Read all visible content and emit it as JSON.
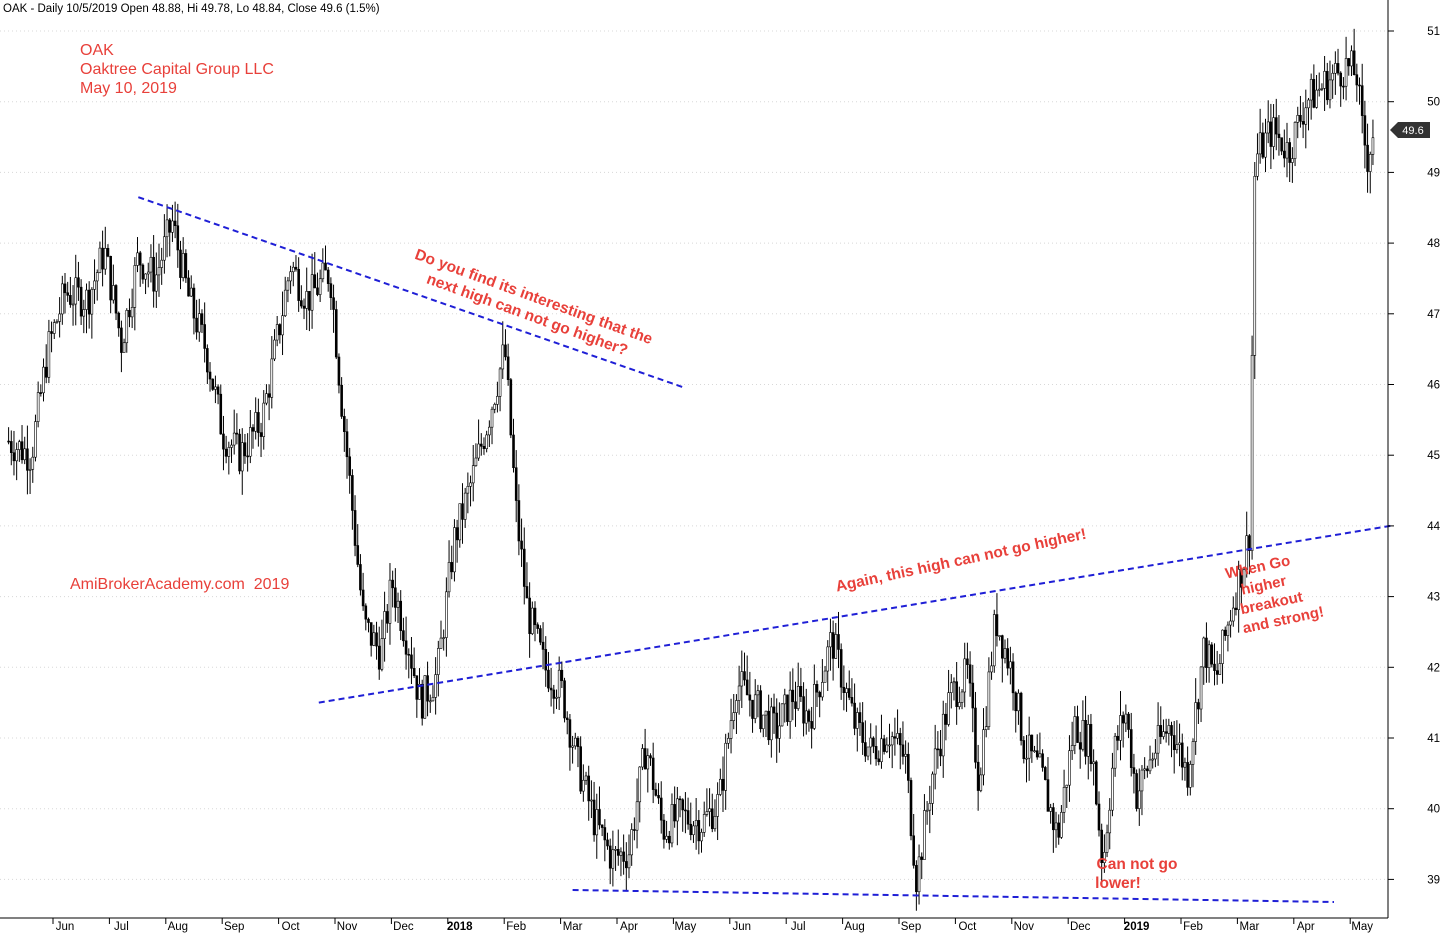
{
  "header": {
    "quote": "OAK - Daily 10/5/2019 Open 48.88, Hi 49.78, Lo 48.84, Close 49.6 (1.5%)"
  },
  "info": {
    "symbol": "OAK",
    "company": "Oaktree Capital Group LLC",
    "date": "May 10, 2019",
    "watermark": "AmiBrokerAcademy.com  2019"
  },
  "annotations": {
    "top_note_line1": "Do you find its interesting that the",
    "top_note_line2": "next high can not go higher?",
    "mid_note": "Again, this high can not go higher!",
    "low_note_line1": "Can not go",
    "low_note_line2": "lower!",
    "right_note_line1": "When Go",
    "right_note_line2": "higher",
    "right_note_line3": "breakout",
    "right_note_line4": "and strong!"
  },
  "colors": {
    "annotation": "#e8403a",
    "trendline": "#1f1fd6",
    "candle": "#000000",
    "grid": "#d8d8d8",
    "price_box": "#333333"
  },
  "chart_data": {
    "type": "candlestick",
    "ylim": [
      38.4,
      51.4
    ],
    "yticks": [
      39,
      40,
      41,
      42,
      43,
      44,
      45,
      46,
      47,
      48,
      49,
      50,
      51
    ],
    "xticks": [
      {
        "label": "Jun",
        "t": 0.0
      },
      {
        "label": "Jul",
        "t": 1.0
      },
      {
        "label": "Aug",
        "t": 2.0
      },
      {
        "label": "Sep",
        "t": 3.0
      },
      {
        "label": "Oct",
        "t": 4.0
      },
      {
        "label": "Nov",
        "t": 5.0
      },
      {
        "label": "Dec",
        "t": 6.0
      },
      {
        "label": "2018",
        "t": 7.0,
        "bold": true
      },
      {
        "label": "Feb",
        "t": 8.0
      },
      {
        "label": "Mar",
        "t": 9.0
      },
      {
        "label": "Apr",
        "t": 10.0
      },
      {
        "label": "May",
        "t": 11.0
      },
      {
        "label": "Jun",
        "t": 12.0
      },
      {
        "label": "Jul",
        "t": 13.0
      },
      {
        "label": "Aug",
        "t": 14.0
      },
      {
        "label": "Sep",
        "t": 15.0
      },
      {
        "label": "Oct",
        "t": 16.0
      },
      {
        "label": "Nov",
        "t": 17.0
      },
      {
        "label": "Dec",
        "t": 18.0
      },
      {
        "label": "2019",
        "t": 19.0,
        "bold": true
      },
      {
        "label": "Feb",
        "t": 20.0
      },
      {
        "label": "Mar",
        "t": 21.0
      },
      {
        "label": "Apr",
        "t": 22.0
      },
      {
        "label": "May",
        "t": 23.0
      }
    ],
    "last_price": "49.6",
    "last_price_value": 49.6,
    "trendlines": [
      {
        "name": "descending-resistance",
        "t1": 1.3,
        "v1": 48.65,
        "t2": 11.0,
        "v2": 45.95
      },
      {
        "name": "ascending-trendline",
        "t1": 4.5,
        "v1": 41.5,
        "t2": 23.5,
        "v2": 44.0
      },
      {
        "name": "flat-support",
        "t1": 9.0,
        "v1": 38.85,
        "t2": 22.5,
        "v2": 38.68
      }
    ],
    "price_path": [
      {
        "t": -1.0,
        "v": 45.2
      },
      {
        "t": -0.6,
        "v": 45.0
      },
      {
        "t": -0.3,
        "v": 46.5
      },
      {
        "t": 0.0,
        "v": 47.3
      },
      {
        "t": 0.4,
        "v": 47.2
      },
      {
        "t": 0.7,
        "v": 47.9
      },
      {
        "t": 1.0,
        "v": 46.6
      },
      {
        "t": 1.3,
        "v": 47.8
      },
      {
        "t": 1.6,
        "v": 47.5
      },
      {
        "t": 1.9,
        "v": 48.3
      },
      {
        "t": 2.2,
        "v": 47.2
      },
      {
        "t": 2.5,
        "v": 46.5
      },
      {
        "t": 2.8,
        "v": 45.3
      },
      {
        "t": 3.1,
        "v": 45.0
      },
      {
        "t": 3.5,
        "v": 45.5
      },
      {
        "t": 3.8,
        "v": 46.8
      },
      {
        "t": 4.0,
        "v": 47.7
      },
      {
        "t": 4.3,
        "v": 47.2
      },
      {
        "t": 4.7,
        "v": 47.6
      },
      {
        "t": 4.9,
        "v": 45.8
      },
      {
        "t": 5.1,
        "v": 44.2
      },
      {
        "t": 5.3,
        "v": 42.6
      },
      {
        "t": 5.6,
        "v": 42.2
      },
      {
        "t": 5.8,
        "v": 43.2
      },
      {
        "t": 6.1,
        "v": 42.3
      },
      {
        "t": 6.3,
        "v": 41.5
      },
      {
        "t": 6.6,
        "v": 41.9
      },
      {
        "t": 6.9,
        "v": 43.8
      },
      {
        "t": 7.2,
        "v": 44.6
      },
      {
        "t": 7.5,
        "v": 45.5
      },
      {
        "t": 7.8,
        "v": 46.5
      },
      {
        "t": 8.0,
        "v": 44.2
      },
      {
        "t": 8.2,
        "v": 42.8
      },
      {
        "t": 8.5,
        "v": 42.0
      },
      {
        "t": 8.8,
        "v": 41.7
      },
      {
        "t": 9.1,
        "v": 40.6
      },
      {
        "t": 9.4,
        "v": 39.8
      },
      {
        "t": 9.7,
        "v": 39.3
      },
      {
        "t": 10.0,
        "v": 39.4
      },
      {
        "t": 10.3,
        "v": 40.9
      },
      {
        "t": 10.6,
        "v": 39.7
      },
      {
        "t": 10.9,
        "v": 39.9
      },
      {
        "t": 11.3,
        "v": 39.8
      },
      {
        "t": 11.6,
        "v": 40.1
      },
      {
        "t": 11.9,
        "v": 41.8
      },
      {
        "t": 12.2,
        "v": 41.5
      },
      {
        "t": 12.6,
        "v": 41.1
      },
      {
        "t": 12.9,
        "v": 41.6
      },
      {
        "t": 13.2,
        "v": 41.3
      },
      {
        "t": 13.6,
        "v": 42.4
      },
      {
        "t": 14.0,
        "v": 41.2
      },
      {
        "t": 14.3,
        "v": 40.8
      },
      {
        "t": 14.6,
        "v": 41.1
      },
      {
        "t": 14.9,
        "v": 40.7
      },
      {
        "t": 15.1,
        "v": 39.0
      },
      {
        "t": 15.4,
        "v": 40.6
      },
      {
        "t": 15.7,
        "v": 41.6
      },
      {
        "t": 16.0,
        "v": 41.9
      },
      {
        "t": 16.2,
        "v": 40.4
      },
      {
        "t": 16.5,
        "v": 42.7
      },
      {
        "t": 16.8,
        "v": 41.9
      },
      {
        "t": 17.0,
        "v": 40.9
      },
      {
        "t": 17.3,
        "v": 40.5
      },
      {
        "t": 17.6,
        "v": 39.6
      },
      {
        "t": 17.9,
        "v": 41.2
      },
      {
        "t": 18.2,
        "v": 40.9
      },
      {
        "t": 18.4,
        "v": 39.2
      },
      {
        "t": 18.6,
        "v": 40.8
      },
      {
        "t": 18.8,
        "v": 41.4
      },
      {
        "t": 19.0,
        "v": 40.2
      },
      {
        "t": 19.3,
        "v": 40.8
      },
      {
        "t": 19.6,
        "v": 41.2
      },
      {
        "t": 19.9,
        "v": 40.5
      },
      {
        "t": 20.2,
        "v": 42.3
      },
      {
        "t": 20.4,
        "v": 41.8
      },
      {
        "t": 20.7,
        "v": 42.9
      },
      {
        "t": 20.9,
        "v": 43.5
      },
      {
        "t": 21.0,
        "v": 43.9
      },
      {
        "t": 21.1,
        "v": 49.2
      },
      {
        "t": 21.4,
        "v": 49.6
      },
      {
        "t": 21.7,
        "v": 49.3
      },
      {
        "t": 22.0,
        "v": 50.0
      },
      {
        "t": 22.4,
        "v": 50.3
      },
      {
        "t": 22.7,
        "v": 50.5
      },
      {
        "t": 22.9,
        "v": 50.4
      },
      {
        "t": 23.0,
        "v": 49.6
      },
      {
        "t": 23.1,
        "v": 49.2
      },
      {
        "t": 23.2,
        "v": 49.6
      }
    ]
  }
}
